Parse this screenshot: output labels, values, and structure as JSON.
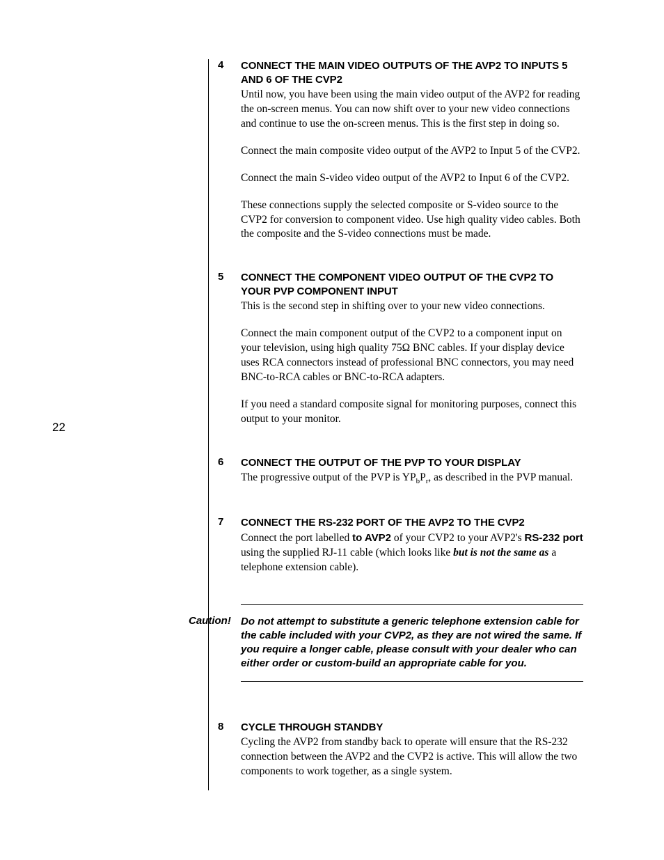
{
  "page_number": "22",
  "steps": {
    "s4": {
      "num": "4",
      "heading": "CONNECT THE MAIN VIDEO OUTPUTS OF THE AVP2 TO INPUTS 5 AND 6 OF THE CVP2",
      "p1": "Until now, you have been using the main video output of the AVP2 for reading the on-screen menus. You can now shift over to your new video connections and continue to use the on-screen menus. This is the first step in doing so.",
      "p2": "Connect the main composite video output of the AVP2 to Input 5 of the CVP2.",
      "p3": "Connect the main S-video video output of the AVP2 to Input 6 of the CVP2.",
      "p4": "These connections supply the selected composite or S-video source to the CVP2 for conversion to component video. Use high quality video cables. Both the composite and the S-video connections must be made."
    },
    "s5": {
      "num": "5",
      "heading": "CONNECT THE COMPONENT VIDEO OUTPUT OF THE CVP2 TO YOUR PVP COMPONENT INPUT",
      "p1": "This is the second step in shifting over to your new video connections.",
      "p2": "Connect the main component output of the CVP2 to a component input on your television, using high quality 75Ω BNC cables. If your display device uses RCA connectors instead of professional BNC connectors, you may need BNC-to-RCA cables or BNC-to-RCA adapters.",
      "p3": "If you need a standard composite signal for monitoring purposes, connect this output to your monitor."
    },
    "s6": {
      "num": "6",
      "heading": "CONNECT THE OUTPUT OF THE PVP TO YOUR DISPLAY",
      "p1a": "The progressive output of the PVP is YP",
      "p1b": ", as described in the PVP manual."
    },
    "s7": {
      "num": "7",
      "heading": "CONNECT THE RS-232 PORT OF THE AVP2 TO THE CVP2",
      "p1a": "Connect the port labelled ",
      "p1b": "to AVP2",
      "p1c": " of your CVP2 to your AVP2's ",
      "p1d": "RS-232 port",
      "p1e": " using the supplied RJ-11 cable (which looks like ",
      "p1f": "but is not the same as",
      "p1g": " a telephone extension cable)."
    },
    "s8": {
      "num": "8",
      "heading": "CYCLE THROUGH STANDBY",
      "p1": "Cycling the AVP2 from standby back to operate will ensure that the RS-232 connection between the AVP2 and the CVP2 is active. This will allow the two components to work together, as a single system."
    }
  },
  "caution": {
    "label": "Caution!",
    "text": "Do not attempt to substitute a generic telephone extension cable for the cable included with your CVP2, as they are not wired the same. If you require a longer cable, please consult with your dealer who can either order or custom-build an appropriate cable for you."
  },
  "subscripts": {
    "b": "b",
    "P": "P",
    "r": "r"
  }
}
